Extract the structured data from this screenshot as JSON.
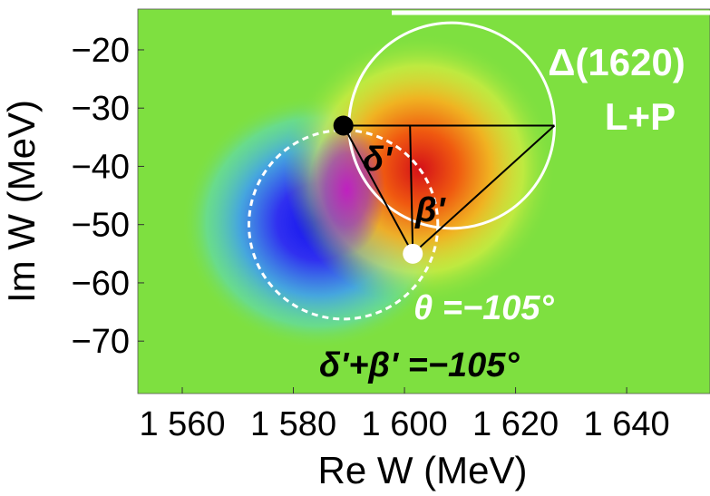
{
  "chart_data": {
    "type": "heatmap",
    "title": "Δ(1620)",
    "subtitle": "L+P",
    "xlabel": "Re W (MeV)",
    "ylabel": "Im W (MeV)",
    "xlim": [
      1552,
      1655
    ],
    "ylim": [
      -79,
      -13
    ],
    "xticks": [
      1560,
      1580,
      1600,
      1620,
      1640
    ],
    "xtick_labels": [
      "1 560",
      "1 580",
      "1 600",
      "1 620",
      "1 640"
    ],
    "yticks": [
      -20,
      -30,
      -40,
      -50,
      -60,
      -70
    ],
    "ytick_labels": [
      "−20",
      "−30",
      "−40",
      "−50",
      "−60",
      "−70"
    ],
    "grid": false,
    "points": {
      "pole": {
        "x": 1589,
        "y": -33,
        "color": "#000000"
      },
      "zero": {
        "x": 1601.5,
        "y": -55,
        "color": "#ffffff"
      },
      "triangle_apex": {
        "x": 1627,
        "y": -33
      },
      "foot": {
        "x": 1601,
        "y": -33
      }
    },
    "circles": {
      "solid_white": {
        "cx": 1608.5,
        "cy": -33,
        "r": 18.5
      },
      "dashed_white": {
        "cx": 1589,
        "cy": -50,
        "r": 17
      }
    },
    "annotations": {
      "delta_prime": "δ'",
      "beta_prime": "β'",
      "theta_label": "θ =−105°",
      "sum_label": "δ'+β' =−105°"
    },
    "colors": {
      "background": "#7ee040",
      "blue_lobe": "#1010ee",
      "red_lobe": "#d41018",
      "white": "#ffffff",
      "black": "#000000"
    }
  }
}
